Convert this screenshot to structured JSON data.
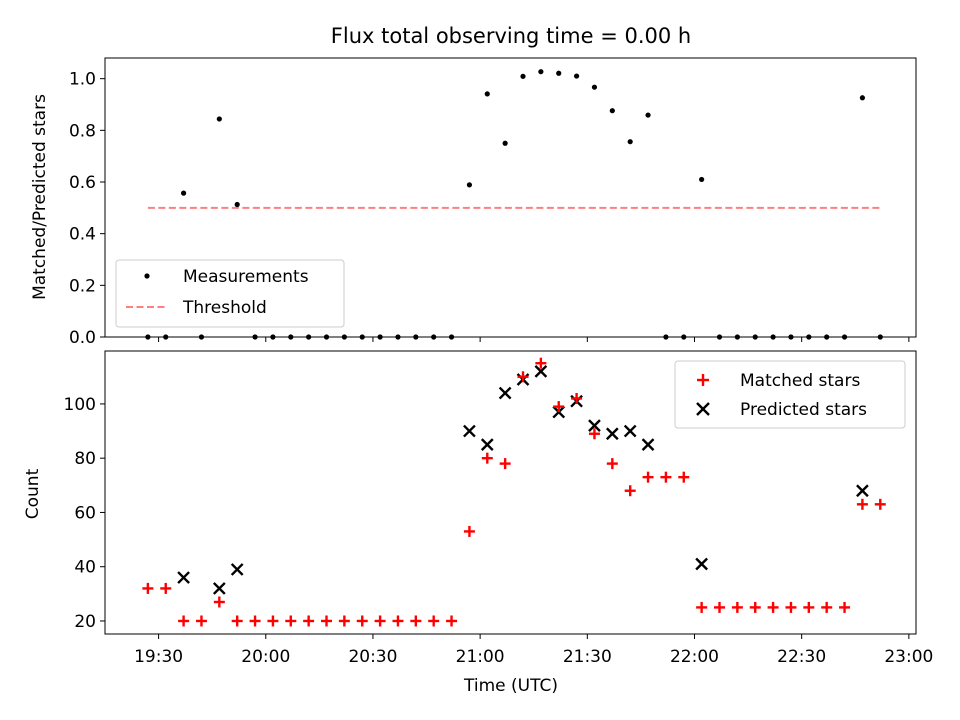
{
  "chart_data": [
    {
      "type": "scatter",
      "title": "Flux total observing time = 0.00 h",
      "xlabel": "",
      "ylabel": "Matched/Predicted stars",
      "ylim": [
        0,
        1.08
      ],
      "yticks": [
        0.0,
        0.2,
        0.4,
        0.6,
        0.8,
        1.0
      ],
      "ytick_labels": [
        "0.0",
        "0.2",
        "0.4",
        "0.6",
        "0.8",
        "1.0"
      ],
      "xlim_minutes": [
        1155,
        1382
      ],
      "legend_position": "lower-left",
      "series": [
        {
          "name": "Measurements",
          "marker": "dot",
          "color": "#000000",
          "points": [
            {
              "x": "19:27",
              "y": 0.0
            },
            {
              "x": "19:32",
              "y": 0.0
            },
            {
              "x": "19:37",
              "y": 0.557
            },
            {
              "x": "19:42",
              "y": 0.0
            },
            {
              "x": "19:47",
              "y": 0.844
            },
            {
              "x": "19:52",
              "y": 0.513
            },
            {
              "x": "19:57",
              "y": 0.0
            },
            {
              "x": "20:02",
              "y": 0.0
            },
            {
              "x": "20:07",
              "y": 0.0
            },
            {
              "x": "20:12",
              "y": 0.0
            },
            {
              "x": "20:17",
              "y": 0.0
            },
            {
              "x": "20:22",
              "y": 0.0
            },
            {
              "x": "20:27",
              "y": 0.0
            },
            {
              "x": "20:32",
              "y": 0.0
            },
            {
              "x": "20:37",
              "y": 0.0
            },
            {
              "x": "20:42",
              "y": 0.0
            },
            {
              "x": "20:47",
              "y": 0.0
            },
            {
              "x": "20:52",
              "y": 0.0
            },
            {
              "x": "20:57",
              "y": 0.589
            },
            {
              "x": "21:02",
              "y": 0.941
            },
            {
              "x": "21:07",
              "y": 0.75
            },
            {
              "x": "21:12",
              "y": 1.009
            },
            {
              "x": "21:17",
              "y": 1.027
            },
            {
              "x": "21:22",
              "y": 1.021
            },
            {
              "x": "21:27",
              "y": 1.01
            },
            {
              "x": "21:32",
              "y": 0.967
            },
            {
              "x": "21:37",
              "y": 0.876
            },
            {
              "x": "21:42",
              "y": 0.756
            },
            {
              "x": "21:47",
              "y": 0.859
            },
            {
              "x": "21:52",
              "y": 0.0
            },
            {
              "x": "21:57",
              "y": 0.0
            },
            {
              "x": "22:02",
              "y": 0.61
            },
            {
              "x": "22:07",
              "y": 0.0
            },
            {
              "x": "22:12",
              "y": 0.0
            },
            {
              "x": "22:17",
              "y": 0.0
            },
            {
              "x": "22:22",
              "y": 0.0
            },
            {
              "x": "22:27",
              "y": 0.0
            },
            {
              "x": "22:32",
              "y": 0.0
            },
            {
              "x": "22:37",
              "y": 0.0
            },
            {
              "x": "22:42",
              "y": 0.0
            },
            {
              "x": "22:47",
              "y": 0.926
            },
            {
              "x": "22:52",
              "y": 0.0
            }
          ]
        },
        {
          "name": "Threshold",
          "style": "dashed-line",
          "color": "#ff7f7f",
          "points": [
            {
              "x": "19:27",
              "y": 0.5
            },
            {
              "x": "22:52",
              "y": 0.5
            }
          ]
        }
      ]
    },
    {
      "type": "scatter",
      "title": "",
      "xlabel": "Time (UTC)",
      "ylabel": "Count",
      "ylim": [
        15.2,
        119.5
      ],
      "yticks": [
        20,
        40,
        60,
        80,
        100
      ],
      "ytick_labels": [
        "20",
        "40",
        "60",
        "80",
        "100"
      ],
      "xticks": [
        "19:30",
        "20:00",
        "20:30",
        "21:00",
        "21:30",
        "22:00",
        "22:30",
        "23:00"
      ],
      "xlim_minutes": [
        1155,
        1382
      ],
      "legend_position": "upper-right",
      "series": [
        {
          "name": "Matched stars",
          "marker": "plus",
          "color": "#ff0000",
          "points": [
            {
              "x": "19:27",
              "y": 32
            },
            {
              "x": "19:32",
              "y": 32
            },
            {
              "x": "19:37",
              "y": 20
            },
            {
              "x": "19:42",
              "y": 20
            },
            {
              "x": "19:47",
              "y": 27
            },
            {
              "x": "19:52",
              "y": 20
            },
            {
              "x": "19:57",
              "y": 20
            },
            {
              "x": "20:02",
              "y": 20
            },
            {
              "x": "20:07",
              "y": 20
            },
            {
              "x": "20:12",
              "y": 20
            },
            {
              "x": "20:17",
              "y": 20
            },
            {
              "x": "20:22",
              "y": 20
            },
            {
              "x": "20:27",
              "y": 20
            },
            {
              "x": "20:32",
              "y": 20
            },
            {
              "x": "20:37",
              "y": 20
            },
            {
              "x": "20:42",
              "y": 20
            },
            {
              "x": "20:47",
              "y": 20
            },
            {
              "x": "20:52",
              "y": 20
            },
            {
              "x": "20:57",
              "y": 53
            },
            {
              "x": "21:02",
              "y": 80
            },
            {
              "x": "21:07",
              "y": 78
            },
            {
              "x": "21:12",
              "y": 110
            },
            {
              "x": "21:17",
              "y": 115
            },
            {
              "x": "21:22",
              "y": 99
            },
            {
              "x": "21:27",
              "y": 102
            },
            {
              "x": "21:32",
              "y": 89
            },
            {
              "x": "21:37",
              "y": 78
            },
            {
              "x": "21:42",
              "y": 68
            },
            {
              "x": "21:47",
              "y": 73
            },
            {
              "x": "21:52",
              "y": 73
            },
            {
              "x": "21:57",
              "y": 73
            },
            {
              "x": "22:02",
              "y": 25
            },
            {
              "x": "22:07",
              "y": 25
            },
            {
              "x": "22:12",
              "y": 25
            },
            {
              "x": "22:17",
              "y": 25
            },
            {
              "x": "22:22",
              "y": 25
            },
            {
              "x": "22:27",
              "y": 25
            },
            {
              "x": "22:32",
              "y": 25
            },
            {
              "x": "22:37",
              "y": 25
            },
            {
              "x": "22:42",
              "y": 25
            },
            {
              "x": "22:47",
              "y": 63
            },
            {
              "x": "22:52",
              "y": 63
            }
          ]
        },
        {
          "name": "Predicted stars",
          "marker": "cross",
          "color": "#000000",
          "points": [
            {
              "x": "19:37",
              "y": 36
            },
            {
              "x": "19:47",
              "y": 32
            },
            {
              "x": "19:52",
              "y": 39
            },
            {
              "x": "20:57",
              "y": 90
            },
            {
              "x": "21:02",
              "y": 85
            },
            {
              "x": "21:07",
              "y": 104
            },
            {
              "x": "21:12",
              "y": 109
            },
            {
              "x": "21:17",
              "y": 112
            },
            {
              "x": "21:22",
              "y": 97
            },
            {
              "x": "21:27",
              "y": 101
            },
            {
              "x": "21:32",
              "y": 92
            },
            {
              "x": "21:37",
              "y": 89
            },
            {
              "x": "21:42",
              "y": 90
            },
            {
              "x": "21:47",
              "y": 85
            },
            {
              "x": "22:02",
              "y": 41
            },
            {
              "x": "22:47",
              "y": 68
            }
          ]
        }
      ]
    }
  ]
}
